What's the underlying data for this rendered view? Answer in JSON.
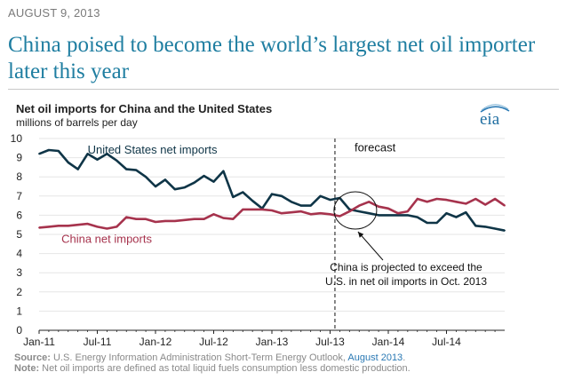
{
  "date": "AUGUST 9, 2013",
  "headline": "China poised to become the world’s largest net oil importer later this year",
  "logo_text": "eia",
  "chart_data": {
    "type": "line",
    "title": "Net oil imports for China and the United States",
    "ylabel": "millions of barrels per day",
    "xlabel": "",
    "ylim": [
      0,
      10
    ],
    "yticks": [
      "0",
      "1",
      "2",
      "3",
      "4",
      "5",
      "6",
      "7",
      "8",
      "9",
      "10"
    ],
    "xticks": [
      "Jan-11",
      "Jul-11",
      "Jan-12",
      "Jul-12",
      "Jan-13",
      "Jul-13",
      "Jan-14",
      "Jul-14"
    ],
    "x_start": "Jan-11",
    "x_end": "Dec-14",
    "forecast_start_index": 31,
    "forecast_label": "forecast",
    "series": [
      {
        "name": "United States net imports",
        "color": "#0f3547",
        "values": [
          9.2,
          9.4,
          9.35,
          8.75,
          8.4,
          9.2,
          8.9,
          9.2,
          8.85,
          8.4,
          8.35,
          8.0,
          7.5,
          7.85,
          7.35,
          7.45,
          7.7,
          8.05,
          7.75,
          8.3,
          6.95,
          7.2,
          6.75,
          6.35,
          7.1,
          7.0,
          6.7,
          6.5,
          6.5,
          7.0,
          6.8,
          6.9,
          6.3,
          6.2,
          6.1,
          6.0,
          6.0,
          6.0,
          6.0,
          5.9,
          5.6,
          5.6,
          6.1,
          5.9,
          6.15,
          5.45,
          5.4,
          5.3,
          5.2
        ]
      },
      {
        "name": "China net imports",
        "color": "#a6334d",
        "values": [
          5.35,
          5.4,
          5.45,
          5.45,
          5.5,
          5.55,
          5.4,
          5.3,
          5.4,
          5.9,
          5.8,
          5.8,
          5.65,
          5.7,
          5.7,
          5.75,
          5.8,
          5.8,
          6.05,
          5.85,
          5.8,
          6.3,
          6.3,
          6.3,
          6.25,
          6.1,
          6.15,
          6.2,
          6.05,
          6.1,
          6.05,
          5.95,
          6.2,
          6.5,
          6.7,
          6.45,
          6.35,
          6.1,
          6.2,
          6.85,
          6.7,
          6.85,
          6.8,
          6.7,
          6.6,
          6.85,
          6.55,
          6.85,
          6.5
        ]
      }
    ],
    "annotation": "China is projected to exceed the U.S. in net oil imports in Oct. 2013"
  },
  "source_label": "Source:",
  "source_text": "U.S. Energy Information Administration Short-Term Energy Outlook,",
  "source_link": "August 2013",
  "source_end": ".",
  "note_label": "Note:",
  "note_text": "Net oil imports are defined as total liquid fuels consumption less domestic production."
}
